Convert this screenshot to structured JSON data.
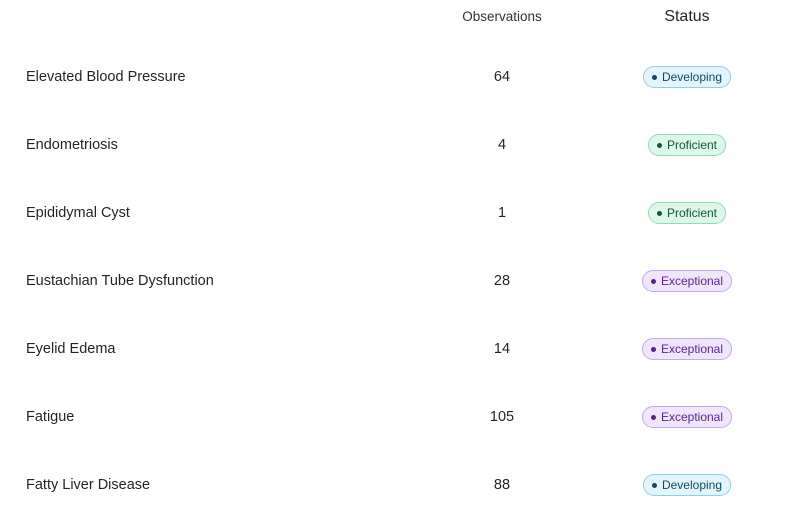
{
  "table": {
    "headers": {
      "condition": "",
      "observations": "Observations",
      "status": "Status"
    },
    "rows": [
      {
        "condition": "Elevated Blood Pressure",
        "observations": "64",
        "status": "Developing",
        "status_kind": "developing"
      },
      {
        "condition": "Endometriosis",
        "observations": "4",
        "status": "Proficient",
        "status_kind": "proficient"
      },
      {
        "condition": "Epididymal Cyst",
        "observations": "1",
        "status": "Proficient",
        "status_kind": "proficient"
      },
      {
        "condition": "Eustachian Tube Dysfunction",
        "observations": "28",
        "status": "Exceptional",
        "status_kind": "exceptional"
      },
      {
        "condition": "Eyelid Edema",
        "observations": "14",
        "status": "Exceptional",
        "status_kind": "exceptional"
      },
      {
        "condition": "Fatigue",
        "observations": "105",
        "status": "Exceptional",
        "status_kind": "exceptional"
      },
      {
        "condition": "Fatty Liver Disease",
        "observations": "88",
        "status": "Developing",
        "status_kind": "developing"
      }
    ]
  },
  "colors": {
    "developing": "#0d4a6b",
    "proficient": "#0f5a35",
    "exceptional": "#5a1d9c"
  }
}
